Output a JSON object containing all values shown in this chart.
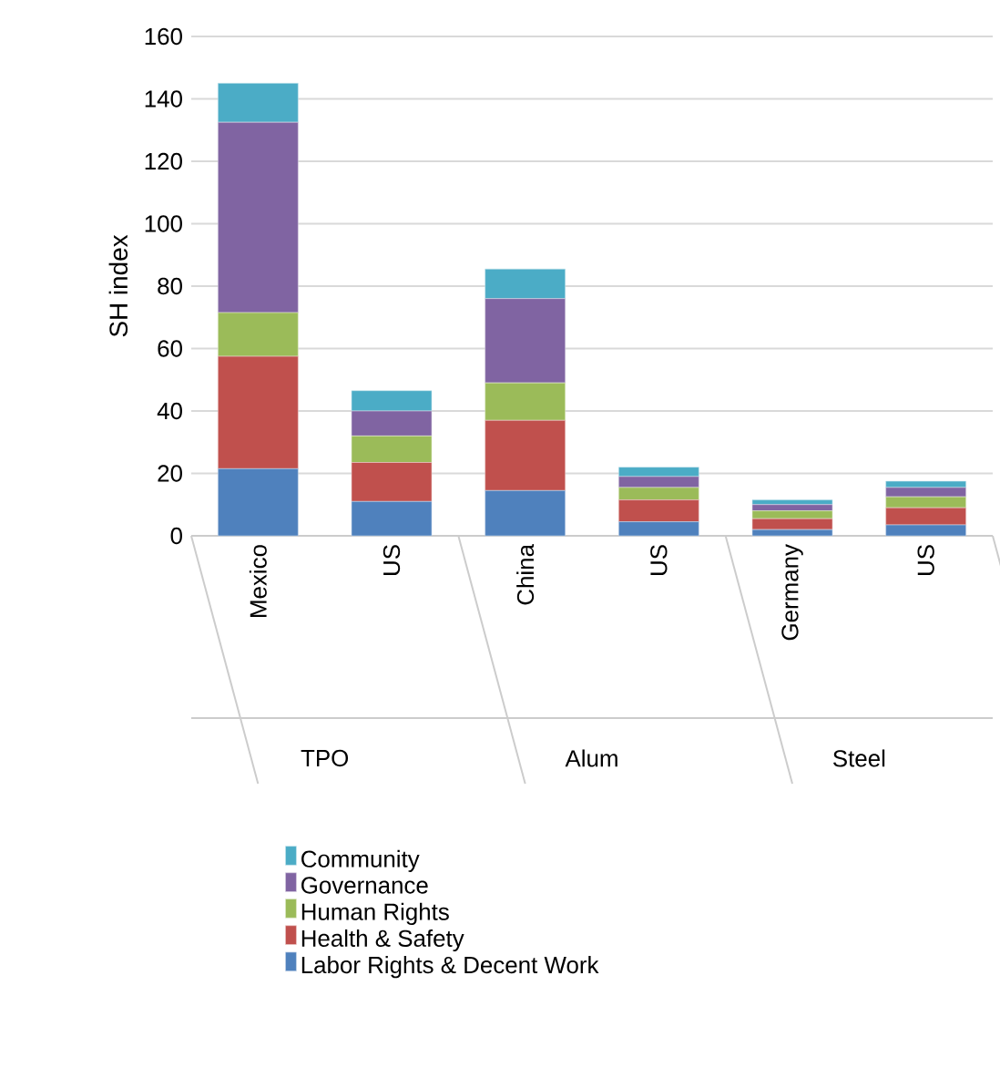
{
  "chart_data": {
    "type": "bar",
    "stacked": true,
    "ylabel": "SH index",
    "categories": [
      "Mexico",
      "US",
      "China",
      "US",
      "Germany",
      "US"
    ],
    "annotations": [
      "TPO",
      "Alum",
      "Steel"
    ],
    "series": [
      {
        "name": "Labor Rights & Decent Work",
        "color": "#4f81bd",
        "values": [
          21.5,
          11,
          14.5,
          4.5,
          2,
          3.5
        ]
      },
      {
        "name": "Health & Safety",
        "color": "#c0504d",
        "values": [
          36,
          12.5,
          22.5,
          7,
          3.5,
          5.5
        ]
      },
      {
        "name": "Human Rights",
        "color": "#9bbb59",
        "values": [
          14,
          8.5,
          12,
          4,
          2.5,
          3.5
        ]
      },
      {
        "name": "Governance",
        "color": "#8064a2",
        "values": [
          61,
          8,
          27,
          3.5,
          2,
          3
        ]
      },
      {
        "name": "Community",
        "color": "#4bacc6",
        "values": [
          12.5,
          6.5,
          9.5,
          3,
          1.5,
          2
        ]
      }
    ],
    "ylim": [
      0,
      160
    ],
    "yticks": [
      0,
      20,
      40,
      60,
      80,
      100,
      120,
      140,
      160
    ],
    "grid": "y",
    "legend": "bottom"
  }
}
